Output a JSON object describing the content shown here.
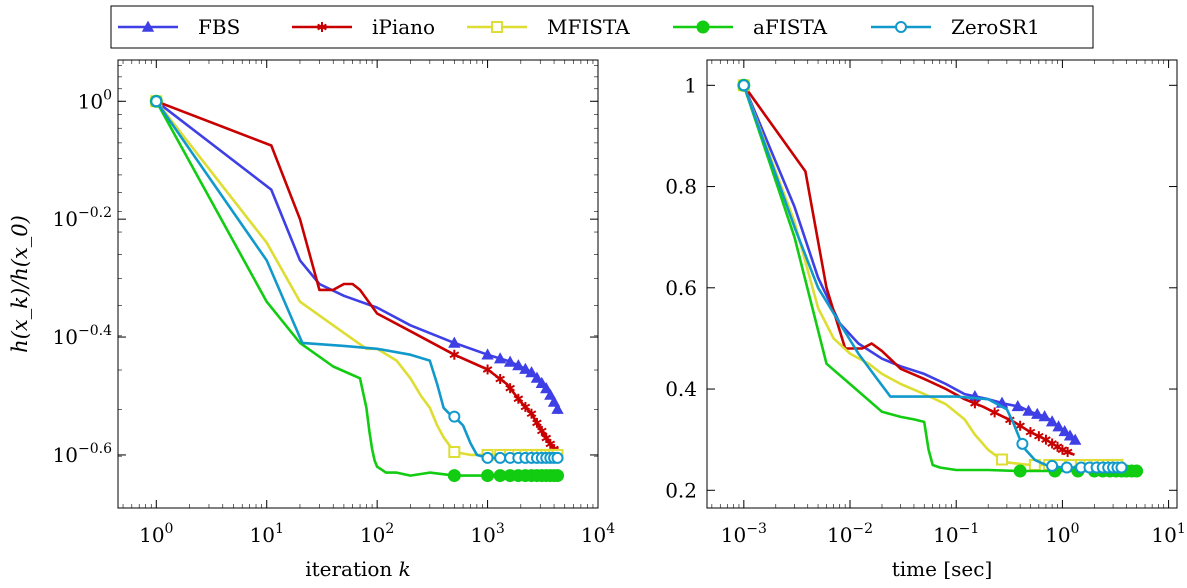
{
  "chart_data": [
    {
      "type": "line",
      "xlabel": "iteration",
      "xlabel_var": "k",
      "ylabel": "h(x_k)/h(x_0)",
      "xscale": "log",
      "yscale": "log",
      "xlim": [
        0.45,
        10000
      ],
      "ylim": [
        -0.69,
        0.07
      ],
      "x_ticks": [
        {
          "v": 1,
          "base": "10",
          "exp": "0"
        },
        {
          "v": 10,
          "base": "10",
          "exp": "1"
        },
        {
          "v": 100,
          "base": "10",
          "exp": "2"
        },
        {
          "v": 1000,
          "base": "10",
          "exp": "3"
        },
        {
          "v": 10000,
          "base": "10",
          "exp": "4"
        }
      ],
      "y_ticks": [
        {
          "v": 0,
          "base": "10",
          "exp": "0"
        },
        {
          "v": -0.2,
          "base": "10",
          "exp": "−0.2"
        },
        {
          "v": -0.4,
          "base": "10",
          "exp": "−0.4"
        },
        {
          "v": -0.6,
          "base": "10",
          "exp": "−0.6"
        }
      ],
      "series": [
        {
          "name": "FBS",
          "color": "#3f3fe6",
          "marker": "triangle",
          "x": [
            1,
            11,
            20,
            30,
            50,
            100,
            200,
            500,
            1000,
            1500,
            2000,
            2500,
            3000,
            3500,
            4000,
            4500
          ],
          "y": [
            0,
            -0.15,
            -0.27,
            -0.31,
            -0.33,
            -0.35,
            -0.38,
            -0.41,
            -0.43,
            -0.44,
            -0.45,
            -0.46,
            -0.475,
            -0.49,
            -0.51,
            -0.53
          ],
          "markers": [
            500,
            1000,
            1300,
            1600,
            1900,
            2200,
            2500,
            2800,
            3100,
            3400,
            3700,
            4000,
            4300,
            4600
          ]
        },
        {
          "name": "iPiano",
          "color": "#c80000",
          "marker": "star",
          "x": [
            1,
            11,
            20,
            30,
            40,
            50,
            60,
            70,
            100,
            200,
            500,
            1000,
            1500,
            2000,
            2500,
            3000,
            3500,
            4000,
            4500
          ],
          "y": [
            0,
            -0.075,
            -0.2,
            -0.32,
            -0.32,
            -0.31,
            -0.31,
            -0.32,
            -0.36,
            -0.39,
            -0.43,
            -0.455,
            -0.48,
            -0.51,
            -0.53,
            -0.555,
            -0.575,
            -0.59,
            -0.6
          ],
          "markers": [
            500,
            1000,
            1300,
            1600,
            1900,
            2200,
            2500,
            2800,
            3100,
            3400,
            3700,
            4000,
            4300,
            4600
          ]
        },
        {
          "name": "MFISTA",
          "color": "#dddd33",
          "marker": "square",
          "x": [
            1,
            10,
            20,
            40,
            80,
            100,
            150,
            200,
            250,
            300,
            350,
            400,
            500,
            700,
            1000,
            2000,
            4500
          ],
          "y": [
            0,
            -0.24,
            -0.34,
            -0.38,
            -0.42,
            -0.42,
            -0.44,
            -0.47,
            -0.5,
            -0.52,
            -0.55,
            -0.57,
            -0.595,
            -0.6,
            -0.6,
            -0.6,
            -0.6
          ],
          "markers": [
            500,
            1000,
            1300,
            1600,
            1900,
            2200,
            2500,
            2800,
            3100,
            3400,
            3700,
            4000,
            4300,
            4600
          ]
        },
        {
          "name": "aFISTA",
          "color": "#11cc11",
          "marker": "circle",
          "x": [
            1,
            10,
            20,
            40,
            70,
            80,
            85,
            90,
            95,
            100,
            110,
            120,
            150,
            200,
            300,
            500,
            1000,
            2000,
            4500
          ],
          "y": [
            0,
            -0.34,
            -0.41,
            -0.45,
            -0.47,
            -0.52,
            -0.56,
            -0.59,
            -0.61,
            -0.62,
            -0.625,
            -0.63,
            -0.63,
            -0.635,
            -0.63,
            -0.635,
            -0.635,
            -0.635,
            -0.635
          ],
          "markers": [
            500,
            1000,
            1300,
            1600,
            1900,
            2200,
            2500,
            2800,
            3100,
            3400,
            3700,
            4000,
            4300,
            4600
          ]
        },
        {
          "name": "ZeroSR1",
          "color": "#1199cc",
          "marker": "ocircle",
          "x": [
            1,
            10,
            21,
            50,
            100,
            200,
            300,
            350,
            400,
            450,
            500,
            600,
            700,
            800,
            1000,
            2000,
            4500
          ],
          "y": [
            0,
            -0.27,
            -0.41,
            -0.415,
            -0.42,
            -0.43,
            -0.44,
            -0.48,
            -0.52,
            -0.53,
            -0.535,
            -0.55,
            -0.58,
            -0.6,
            -0.605,
            -0.605,
            -0.605
          ],
          "markers": [
            500,
            1000,
            1300,
            1600,
            1900,
            2200,
            2500,
            2800,
            3100,
            3400,
            3700,
            4000,
            4300,
            4600
          ]
        }
      ]
    },
    {
      "type": "line",
      "xlabel": "time [sec]",
      "ylabel": "",
      "xscale": "log",
      "yscale": "linear",
      "xlim": [
        0.00045,
        12
      ],
      "ylim": [
        0.165,
        1.05
      ],
      "x_ticks": [
        {
          "v": 0.001,
          "base": "10",
          "exp": "−3"
        },
        {
          "v": 0.01,
          "base": "10",
          "exp": "−2"
        },
        {
          "v": 0.1,
          "base": "10",
          "exp": "−1"
        },
        {
          "v": 1,
          "base": "10",
          "exp": "0"
        },
        {
          "v": 10,
          "base": "10",
          "exp": "1"
        }
      ],
      "y_ticks": [
        {
          "v": 0.2,
          "label": "0.2"
        },
        {
          "v": 0.4,
          "label": "0.4"
        },
        {
          "v": 0.6,
          "label": "0.6"
        },
        {
          "v": 0.8,
          "label": "0.8"
        },
        {
          "v": 1.0,
          "label": "1"
        }
      ],
      "series": [
        {
          "name": "FBS",
          "color": "#3f3fe6",
          "marker": "triangle",
          "x": [
            0.001,
            0.003,
            0.005,
            0.008,
            0.012,
            0.02,
            0.03,
            0.05,
            0.08,
            0.12,
            0.2,
            0.3,
            0.4,
            0.5,
            0.7,
            1.0,
            1.4
          ],
          "y": [
            1.0,
            0.76,
            0.62,
            0.53,
            0.49,
            0.46,
            0.445,
            0.43,
            0.41,
            0.39,
            0.38,
            0.37,
            0.365,
            0.355,
            0.345,
            0.32,
            0.295
          ],
          "markers": [
            0.15,
            0.27,
            0.38,
            0.48,
            0.58,
            0.68,
            0.8,
            0.92,
            1.05,
            1.18,
            1.32
          ]
        },
        {
          "name": "iPiano",
          "color": "#c80000",
          "marker": "star",
          "x": [
            0.001,
            0.0038,
            0.006,
            0.009,
            0.013,
            0.016,
            0.02,
            0.03,
            0.05,
            0.08,
            0.12,
            0.18,
            0.25,
            0.35,
            0.5,
            0.7,
            1.0,
            1.3
          ],
          "y": [
            1.0,
            0.83,
            0.6,
            0.48,
            0.48,
            0.49,
            0.475,
            0.44,
            0.42,
            0.4,
            0.38,
            0.365,
            0.35,
            0.335,
            0.315,
            0.3,
            0.28,
            0.27
          ],
          "markers": [
            0.15,
            0.23,
            0.32,
            0.4,
            0.5,
            0.6,
            0.7,
            0.8,
            0.9,
            1.0,
            1.12
          ]
        },
        {
          "name": "MFISTA",
          "color": "#dddd33",
          "marker": "square",
          "x": [
            0.001,
            0.003,
            0.005,
            0.007,
            0.01,
            0.015,
            0.02,
            0.03,
            0.05,
            0.08,
            0.12,
            0.15,
            0.2,
            0.25,
            0.3,
            0.5,
            1.0,
            2.0,
            3.5
          ],
          "y": [
            1.0,
            0.73,
            0.56,
            0.5,
            0.47,
            0.45,
            0.43,
            0.41,
            0.39,
            0.37,
            0.34,
            0.31,
            0.28,
            0.265,
            0.255,
            0.25,
            0.25,
            0.25,
            0.25
          ],
          "markers": [
            0.27,
            0.55,
            0.75,
            0.95,
            1.2,
            1.5,
            1.8,
            2.1,
            2.4,
            2.7,
            3.0,
            3.3
          ]
        },
        {
          "name": "aFISTA",
          "color": "#11cc11",
          "marker": "circle",
          "x": [
            0.001,
            0.003,
            0.006,
            0.01,
            0.02,
            0.03,
            0.04,
            0.05,
            0.055,
            0.06,
            0.07,
            0.1,
            0.2,
            0.4,
            1.0,
            2.0,
            5.0
          ],
          "y": [
            1.0,
            0.7,
            0.45,
            0.41,
            0.355,
            0.345,
            0.34,
            0.335,
            0.28,
            0.25,
            0.245,
            0.24,
            0.24,
            0.238,
            0.238,
            0.238,
            0.238
          ],
          "markers": [
            0.4,
            0.85,
            1.4,
            2.0,
            2.4,
            2.8,
            3.2,
            3.6,
            4.0,
            4.5,
            5.0
          ]
        },
        {
          "name": "ZeroSR1",
          "color": "#1199cc",
          "marker": "ocircle",
          "x": [
            0.001,
            0.003,
            0.005,
            0.008,
            0.012,
            0.018,
            0.024,
            0.05,
            0.1,
            0.2,
            0.3,
            0.35,
            0.4,
            0.45,
            0.55,
            0.7,
            1.0,
            2.0,
            4.0
          ],
          "y": [
            1.0,
            0.72,
            0.6,
            0.53,
            0.47,
            0.42,
            0.385,
            0.385,
            0.385,
            0.38,
            0.36,
            0.33,
            0.3,
            0.28,
            0.26,
            0.25,
            0.245,
            0.245,
            0.245
          ],
          "markers": [
            0.42,
            0.8,
            1.1,
            1.5,
            1.8,
            2.1,
            2.4,
            2.7,
            3.0,
            3.3,
            3.6
          ]
        }
      ]
    }
  ],
  "legend": {
    "entries": [
      {
        "label": "FBS",
        "color": "#3f3fe6",
        "marker": "triangle"
      },
      {
        "label": "iPiano",
        "color": "#c80000",
        "marker": "star"
      },
      {
        "label": "MFISTA",
        "color": "#dddd33",
        "marker": "square"
      },
      {
        "label": "aFISTA",
        "color": "#11cc11",
        "marker": "circle"
      },
      {
        "label": "ZeroSR1",
        "color": "#1199cc",
        "marker": "ocircle"
      }
    ]
  }
}
